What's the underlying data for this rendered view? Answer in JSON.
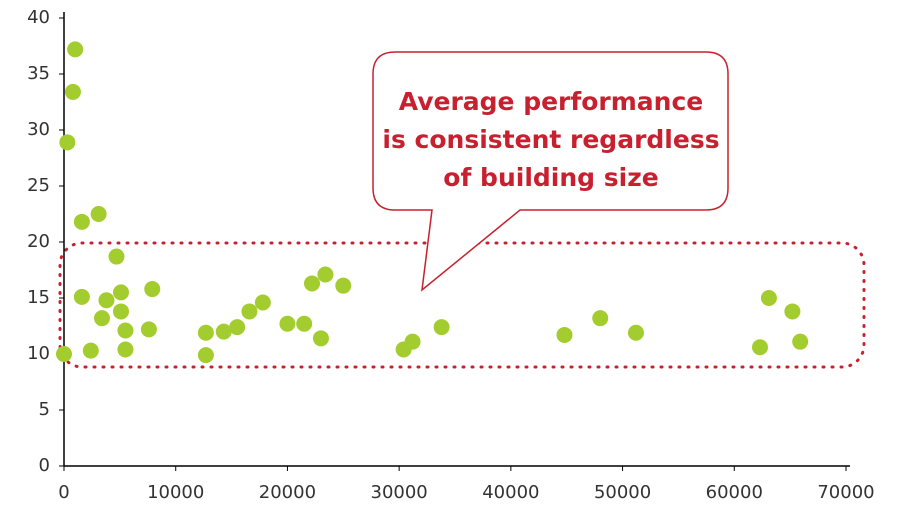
{
  "chart_data": {
    "type": "scatter",
    "x": [
      0,
      1000,
      800,
      300,
      1600,
      3100,
      1600,
      2400,
      3400,
      3800,
      4700,
      5100,
      5100,
      5500,
      5500,
      7900,
      7600,
      12700,
      12700,
      14300,
      15500,
      16600,
      17800,
      20000,
      21500,
      22200,
      23000,
      23400,
      25000,
      30400,
      31200,
      33800,
      44800,
      48000,
      51200,
      62300,
      63100,
      65200,
      65900
    ],
    "values": [
      10.0,
      37.2,
      33.4,
      28.9,
      21.8,
      22.5,
      15.1,
      10.3,
      13.2,
      14.8,
      18.7,
      15.5,
      13.8,
      12.1,
      10.4,
      15.8,
      12.2,
      11.9,
      9.9,
      12.0,
      12.4,
      13.8,
      14.6,
      12.7,
      12.7,
      16.3,
      11.4,
      17.1,
      16.1,
      10.4,
      11.1,
      12.4,
      11.7,
      13.2,
      11.9,
      10.6,
      15.0,
      13.8,
      11.1
    ],
    "color": "#a3cc2e",
    "xlim": [
      0,
      70000
    ],
    "xticks": [
      0,
      10000,
      20000,
      30000,
      40000,
      50000,
      60000,
      70000
    ],
    "ylim": [
      0,
      40
    ],
    "yticks": [
      0,
      5,
      10,
      15,
      20,
      25,
      30,
      35,
      40
    ],
    "annotation": [
      "Average performance",
      "is consistent regardless",
      "of building size"
    ]
  }
}
